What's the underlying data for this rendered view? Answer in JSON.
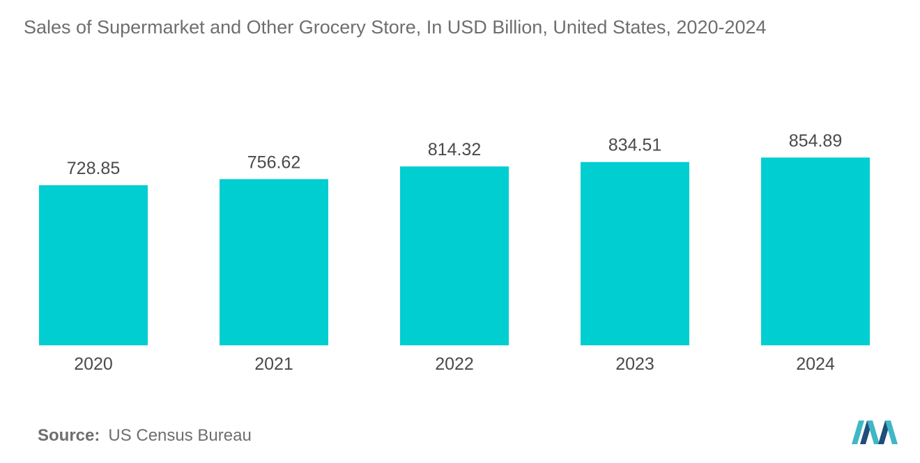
{
  "chart_data": {
    "type": "bar",
    "title": "Sales of Supermarket and Other Grocery Store, In USD Billion, United States, 2020-2024",
    "xlabel": "",
    "ylabel": "",
    "categories": [
      "2020",
      "2021",
      "2022",
      "2023",
      "2024"
    ],
    "values": [
      728.85,
      756.62,
      814.32,
      834.51,
      854.89
    ],
    "value_labels": [
      "728.85",
      "756.62",
      "814.32",
      "834.51",
      "854.89"
    ],
    "grid": false,
    "legend": "none",
    "bar_color": "#00ced1"
  },
  "footer": {
    "source_label": "Source:",
    "source_value": "US Census Bureau"
  },
  "colors": {
    "bar": "#00ced1",
    "text": "#6e6e6e",
    "label": "#4a4a4a",
    "logo_dark": "#1f4e79",
    "logo_light": "#3fb8c4"
  }
}
